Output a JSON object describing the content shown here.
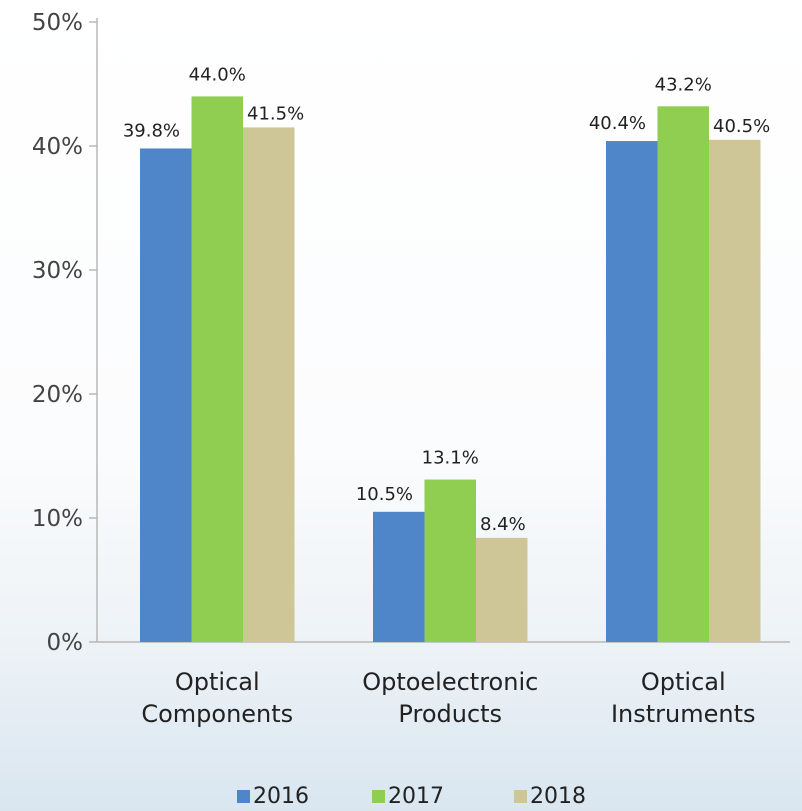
{
  "chart_data": {
    "type": "bar",
    "categories": [
      [
        "Optical",
        "Components"
      ],
      [
        "Optoelectronic",
        "Products"
      ],
      [
        "Optical",
        "Instruments"
      ]
    ],
    "series": [
      {
        "name": "2016",
        "color": "#4f86c9",
        "values": [
          39.8,
          10.5,
          40.4
        ],
        "labels": [
          "39.8%",
          "10.5%",
          "40.4%"
        ]
      },
      {
        "name": "2017",
        "color": "#8fce50",
        "values": [
          44.0,
          13.1,
          43.2
        ],
        "labels": [
          "44.0%",
          "13.1%",
          "43.2%"
        ]
      },
      {
        "name": "2018",
        "color": "#cfc698",
        "values": [
          41.5,
          8.4,
          40.5
        ],
        "labels": [
          "41.5%",
          "8.4%",
          "40.5%"
        ]
      }
    ],
    "ylim": [
      0,
      50
    ],
    "yticks": [
      0,
      10,
      20,
      30,
      40,
      50
    ],
    "ytick_labels": [
      "0%",
      "10%",
      "20%",
      "30%",
      "40%",
      "50%"
    ],
    "legend_position": "bottom",
    "grid": false
  }
}
